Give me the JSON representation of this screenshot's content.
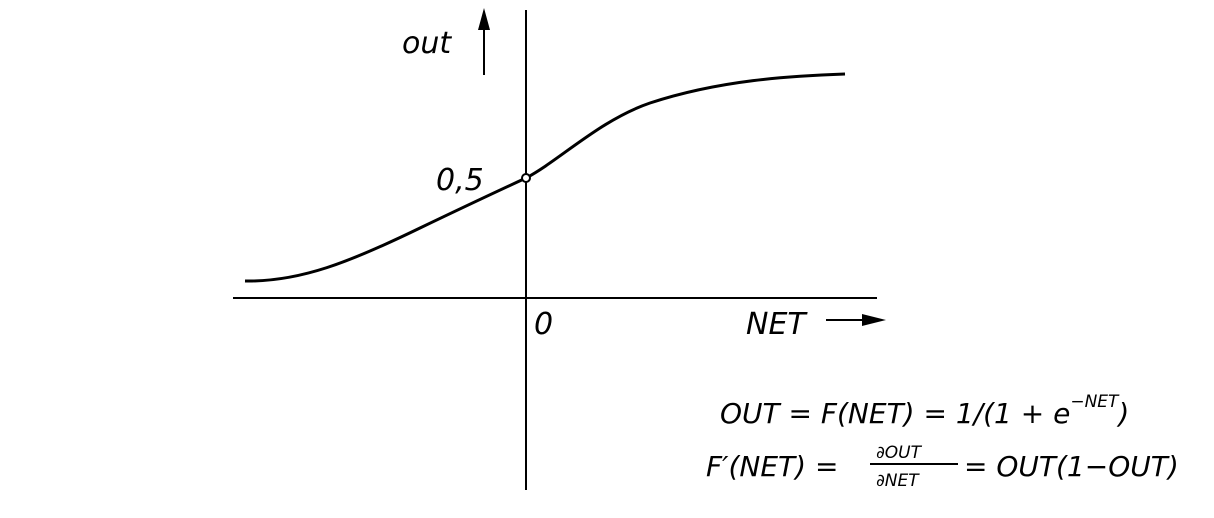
{
  "axes": {
    "y_label": "out",
    "x_label": "NET",
    "origin_label": "0",
    "point_label": "0,5"
  },
  "formulas": {
    "out": {
      "lhs": "OUT = F(NET) = 1/(1 + e",
      "exponent": "−NET",
      "tail": ")"
    },
    "derivative": {
      "lhs": "F′(NET) =",
      "numerator": "∂OUT",
      "denominator": "∂NET",
      "rhs": "= OUT(1−OUT)"
    }
  }
}
